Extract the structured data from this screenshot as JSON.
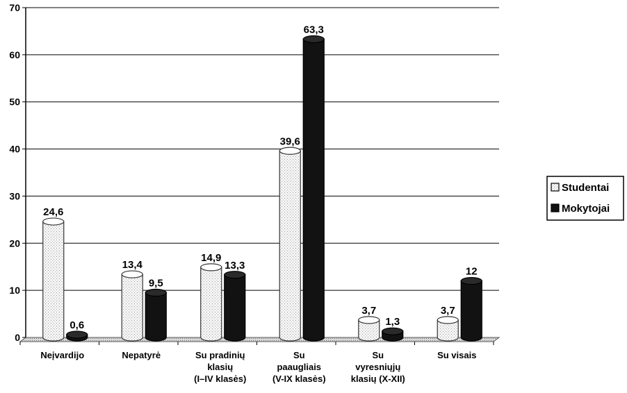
{
  "chart_data": {
    "type": "bar",
    "categories": [
      [
        "Neįvardijo"
      ],
      [
        "Nepatyrė"
      ],
      [
        "Su pradinių",
        "klasių",
        "(I–IV klasės)"
      ],
      [
        "Su",
        "paaugliais",
        "(V-IX klasės)"
      ],
      [
        "Su",
        "vyresniųjų",
        "klasių (X-XII)"
      ],
      [
        "Su visais"
      ]
    ],
    "series": [
      {
        "name": "Studentai",
        "values": [
          24.6,
          13.4,
          14.9,
          39.6,
          3.7,
          3.7
        ],
        "labels": [
          "24,6",
          "13,4",
          "14,9",
          "39,6",
          "3,7",
          "3,7"
        ]
      },
      {
        "name": "Mokytojai",
        "values": [
          0.6,
          9.5,
          13.3,
          63.3,
          1.3,
          12
        ],
        "labels": [
          "0,6",
          "9,5",
          "13,3",
          "63,3",
          "1,3",
          "12"
        ]
      }
    ],
    "ylim": [
      0,
      70
    ],
    "yticks": [
      0,
      10,
      20,
      30,
      40,
      50,
      60,
      70
    ],
    "grid": true,
    "legend": "right",
    "colors": {
      "Studentai": "#f2f2f2",
      "Mokytojai": "#111111"
    }
  }
}
